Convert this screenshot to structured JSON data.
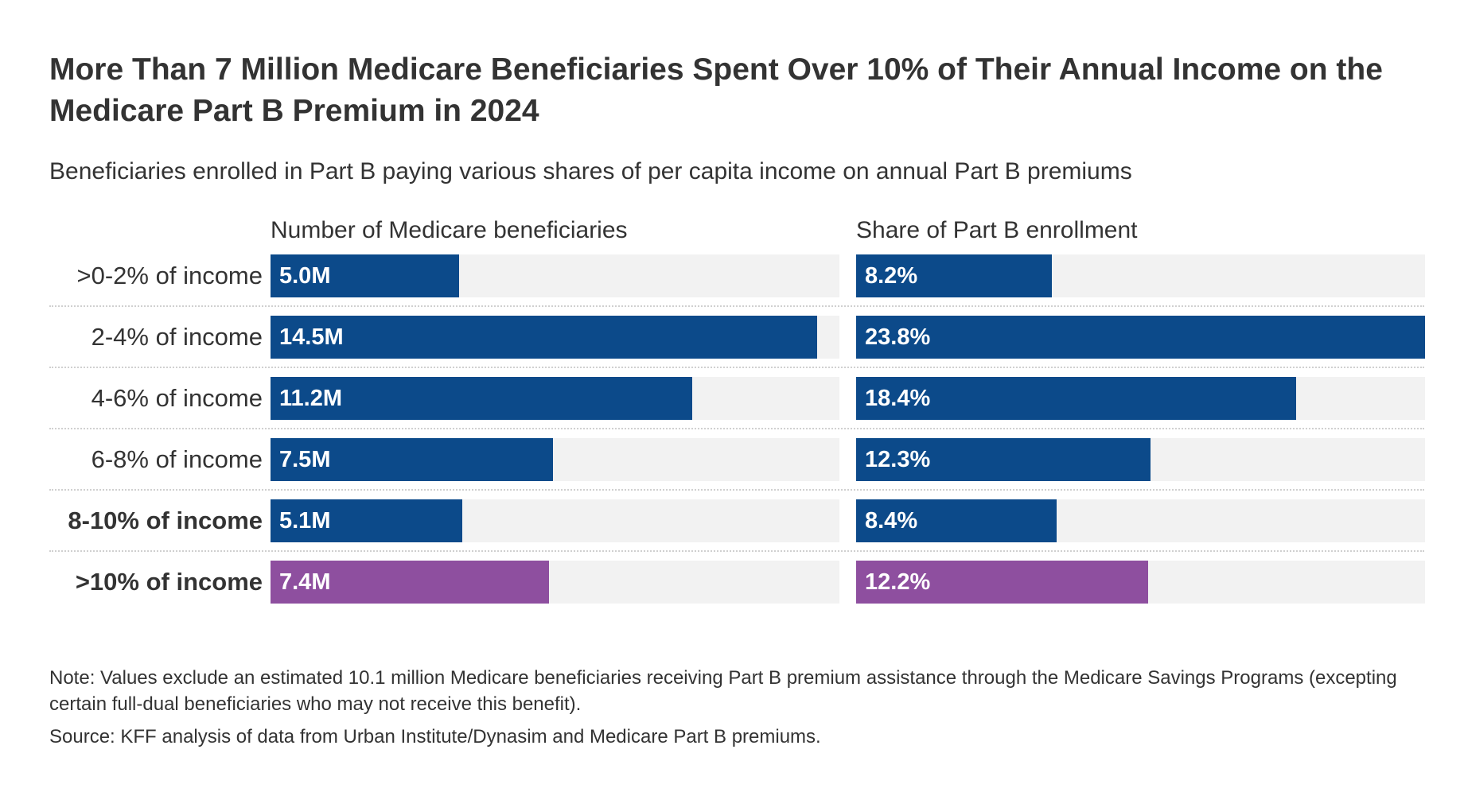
{
  "title": "More Than 7 Million Medicare Beneficiaries Spent Over 10% of Their Annual Income on the Medicare Part B Premium in 2024",
  "subtitle": "Beneficiaries enrolled in Part B paying various shares of per capita income on annual Part B premiums",
  "note": "Note: Values exclude an estimated 10.1 million Medicare beneficiaries receiving Part B premium assistance through the Medicare Savings Programs (excepting certain full-dual beneficiaries who may not receive this benefit).",
  "source": "Source: KFF analysis of data from Urban Institute/Dynasim and Medicare Part B premiums.",
  "colors": {
    "primary": "#0c4a8a",
    "highlight": "#8e4f9f",
    "track": "#f2f2f2"
  },
  "chart_data": {
    "type": "bar",
    "orientation": "horizontal",
    "title": "More Than 7 Million Medicare Beneficiaries Spent Over 10% of Their Annual Income on the Medicare Part B Premium in 2024",
    "subtitle": "Beneficiaries enrolled in Part B paying various shares of per capita income on annual Part B premiums",
    "categories": [
      ">0-2% of income",
      "2-4% of income",
      "4-6% of income",
      "6-8% of income",
      "8-10% of income",
      ">10% of income"
    ],
    "bold_categories": [
      false,
      false,
      false,
      false,
      true,
      true
    ],
    "highlight_categories": [
      false,
      false,
      false,
      false,
      false,
      true
    ],
    "series": [
      {
        "name": "Number of Medicare beneficiaries",
        "values": [
          5.0,
          14.5,
          11.2,
          7.5,
          5.1,
          7.4
        ],
        "labels": [
          "5.0M",
          "14.5M",
          "11.2M",
          "7.5M",
          "5.1M",
          "7.4M"
        ],
        "xlim": [
          0,
          15.1
        ]
      },
      {
        "name": "Share of Part B enrollment",
        "values": [
          8.2,
          23.8,
          18.4,
          12.3,
          8.4,
          12.2
        ],
        "labels": [
          "8.2%",
          "23.8%",
          "18.4%",
          "12.3%",
          "8.4%",
          "12.2%"
        ],
        "xlim": [
          0,
          23.8
        ]
      }
    ],
    "grid": false,
    "legend": "none"
  }
}
